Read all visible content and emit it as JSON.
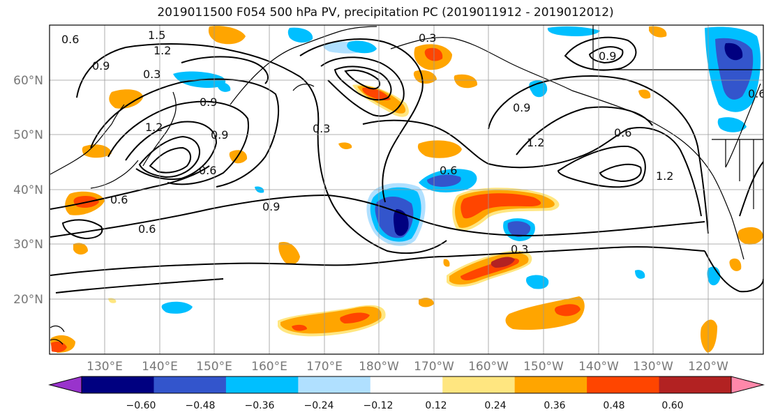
{
  "title": "2019011500 F054 500 hPa PV, precipitation PC (2019011912 - 2019012012)",
  "map": {
    "lat_labels": [
      "20°N",
      "30°N",
      "40°N",
      "50°N",
      "60°N"
    ],
    "lon_labels": [
      "130°E",
      "140°E",
      "150°E",
      "160°E",
      "170°E",
      "180°W",
      "170°W",
      "160°W",
      "150°W",
      "140°W",
      "130°W",
      "120°W"
    ],
    "contour_labels": [
      "0.6",
      "1.5",
      "1.2",
      "0.9",
      "0.3",
      "0.9",
      "1.2",
      "0.9",
      "0.6",
      "0.3",
      "0.6",
      "0.9",
      "0.6",
      "0.6",
      "0.3",
      "0.9",
      "1.2",
      "0.6",
      "0.9",
      "1.2",
      "0.6",
      "0.3"
    ]
  },
  "colorbar": {
    "ticks": [
      "−0.60",
      "−0.48",
      "−0.36",
      "−0.24",
      "−0.12",
      "0.12",
      "0.24",
      "0.36",
      "0.48",
      "0.60"
    ],
    "colors": [
      "#9933cc",
      "#000080",
      "#3355cc",
      "#00bfff",
      "#b0e0ff",
      "#ffffff",
      "#ffe680",
      "#ffa500",
      "#ff4500",
      "#b22222",
      "#ff88aa"
    ]
  },
  "colors": {
    "negative_light": "#b0e0ff",
    "negative_mid": "#00bfff",
    "negative_strong": "#3355cc",
    "negative_max": "#000080",
    "positive_light": "#ffe680",
    "positive_mid": "#ffa500",
    "positive_strong": "#ff4500",
    "positive_max": "#b22222"
  }
}
